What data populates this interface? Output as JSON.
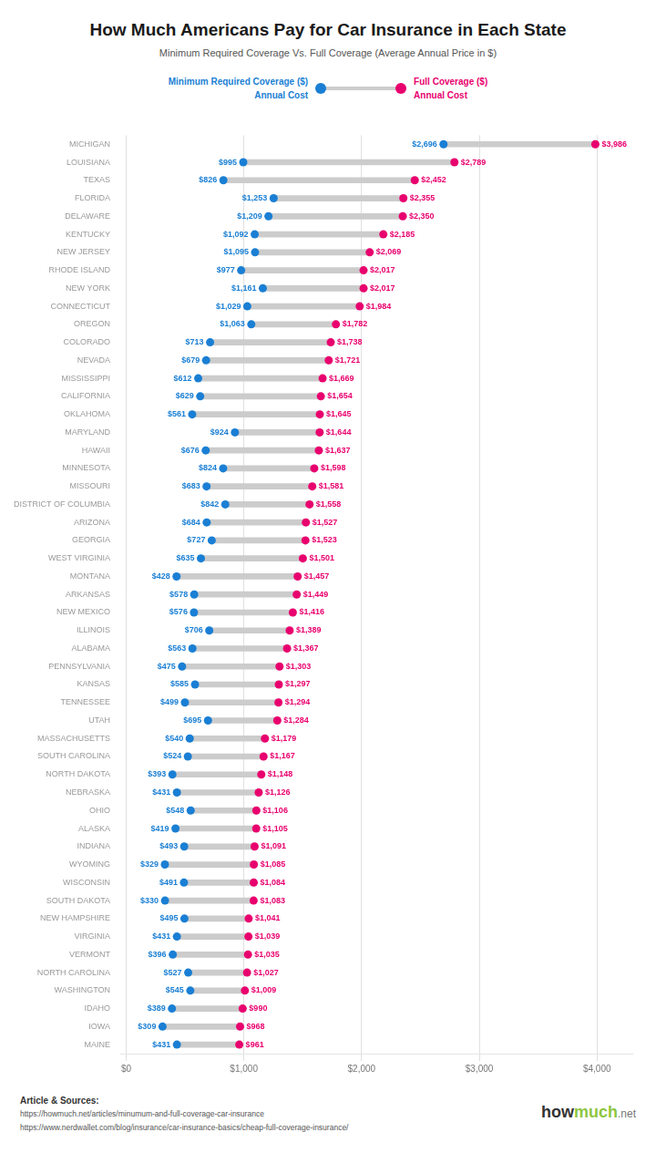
{
  "chart_data": {
    "type": "dumbbell",
    "orientation": "horizontal",
    "title": "How Much Americans Pay for Car Insurance in Each State",
    "subtitle": "Minimum Required Coverage Vs. Full Coverage (Average Annual Price in $)",
    "categories": [
      "MICHIGAN",
      "LOUISIANA",
      "TEXAS",
      "FLORIDA",
      "DELAWARE",
      "KENTUCKY",
      "NEW JERSEY",
      "RHODE ISLAND",
      "NEW YORK",
      "CONNECTICUT",
      "OREGON",
      "COLORADO",
      "NEVADA",
      "MISSISSIPPI",
      "CALIFORNIA",
      "OKLAHOMA",
      "MARYLAND",
      "HAWAII",
      "MINNESOTA",
      "MISSOURI",
      "DISTRICT OF COLUMBIA",
      "ARIZONA",
      "GEORGIA",
      "WEST VIRGINIA",
      "MONTANA",
      "ARKANSAS",
      "NEW MEXICO",
      "ILLINOIS",
      "ALABAMA",
      "PENNSYLVANIA",
      "KANSAS",
      "TENNESSEE",
      "UTAH",
      "MASSACHUSETTS",
      "SOUTH CAROLINA",
      "NORTH DAKOTA",
      "NEBRASKA",
      "OHIO",
      "ALASKA",
      "INDIANA",
      "WYOMING",
      "WISCONSIN",
      "SOUTH DAKOTA",
      "NEW HAMPSHIRE",
      "VIRGINIA",
      "VERMONT",
      "NORTH CAROLINA",
      "WASHINGTON",
      "IDAHO",
      "IOWA",
      "MAINE"
    ],
    "series": [
      {
        "name": "Minimum Required Coverage ($)\nAnnual Cost",
        "color": "#1a7fd4",
        "values": [
          2696,
          995,
          826,
          1253,
          1209,
          1092,
          1095,
          977,
          1161,
          1029,
          1063,
          713,
          679,
          612,
          629,
          561,
          924,
          676,
          824,
          683,
          842,
          684,
          727,
          635,
          428,
          578,
          576,
          706,
          563,
          475,
          585,
          499,
          695,
          540,
          524,
          393,
          431,
          548,
          419,
          493,
          329,
          491,
          330,
          495,
          431,
          396,
          527,
          545,
          389,
          309,
          431
        ],
        "value_labels": [
          "$2,696",
          "$995",
          "$826",
          "$1,253",
          "$1,209",
          "$1,092",
          "$1,095",
          "$977",
          "$1,161",
          "$1,029",
          "$1,063",
          "$713",
          "$679",
          "$612",
          "$629",
          "$561",
          "$924",
          "$676",
          "$824",
          "$683",
          "$842",
          "$684",
          "$727",
          "$635",
          "$428",
          "$578",
          "$576",
          "$706",
          "$563",
          "$475",
          "$585",
          "$499",
          "$695",
          "$540",
          "$524",
          "$393",
          "$431",
          "$548",
          "$419",
          "$493",
          "$329",
          "$491",
          "$330",
          "$495",
          "$431",
          "$396",
          "$527",
          "$545",
          "$389",
          "$309",
          "$431"
        ]
      },
      {
        "name": "Full Coverage ($)\nAnnual Cost",
        "color": "#e8006e",
        "values": [
          3986,
          2789,
          2452,
          2355,
          2350,
          2185,
          2069,
          2017,
          2017,
          1984,
          1782,
          1738,
          1721,
          1669,
          1654,
          1645,
          1644,
          1637,
          1598,
          1581,
          1558,
          1527,
          1523,
          1501,
          1457,
          1449,
          1416,
          1389,
          1367,
          1303,
          1297,
          1294,
          1284,
          1179,
          1167,
          1148,
          1126,
          1106,
          1105,
          1091,
          1085,
          1084,
          1083,
          1041,
          1039,
          1035,
          1027,
          1009,
          990,
          968,
          961
        ],
        "value_labels": [
          "$3,986",
          "$2,789",
          "$2,452",
          "$2,355",
          "$2,350",
          "$2,185",
          "$2,069",
          "$2,017",
          "$2,017",
          "$1,984",
          "$1,782",
          "$1,738",
          "$1,721",
          "$1,669",
          "$1,654",
          "$1,645",
          "$1,644",
          "$1,637",
          "$1,598",
          "$1,581",
          "$1,558",
          "$1,527",
          "$1,523",
          "$1,501",
          "$1,457",
          "$1,449",
          "$1,416",
          "$1,389",
          "$1,367",
          "$1,303",
          "$1,297",
          "$1,294",
          "$1,284",
          "$1,179",
          "$1,167",
          "$1,148",
          "$1,126",
          "$1,106",
          "$1,105",
          "$1,091",
          "$1,085",
          "$1,084",
          "$1,083",
          "$1,041",
          "$1,039",
          "$1,035",
          "$1,027",
          "$1,009",
          "$990",
          "$968",
          "$961"
        ]
      }
    ],
    "xlim": [
      -50,
      4300
    ],
    "xticks": [
      {
        "value": 0,
        "label": "$0"
      },
      {
        "value": 1000,
        "label": "$1,000"
      },
      {
        "value": 2000,
        "label": "$2,000"
      },
      {
        "value": 3000,
        "label": "$3,000"
      },
      {
        "value": 4000,
        "label": "$4,000"
      }
    ],
    "grid": true,
    "data_labels": true,
    "legend": "top",
    "annotations": {
      "footnote": [
        "Article & Sources:",
        "https://howmuch.net/articles/minumum-and-full-coverage-car-insurance",
        "https://www.nerdwallet.com/blog/insurance/car-insurance-basics/cheap-full-coverage-insurance/"
      ],
      "logo": [
        "how",
        "much",
        ".net"
      ]
    }
  }
}
